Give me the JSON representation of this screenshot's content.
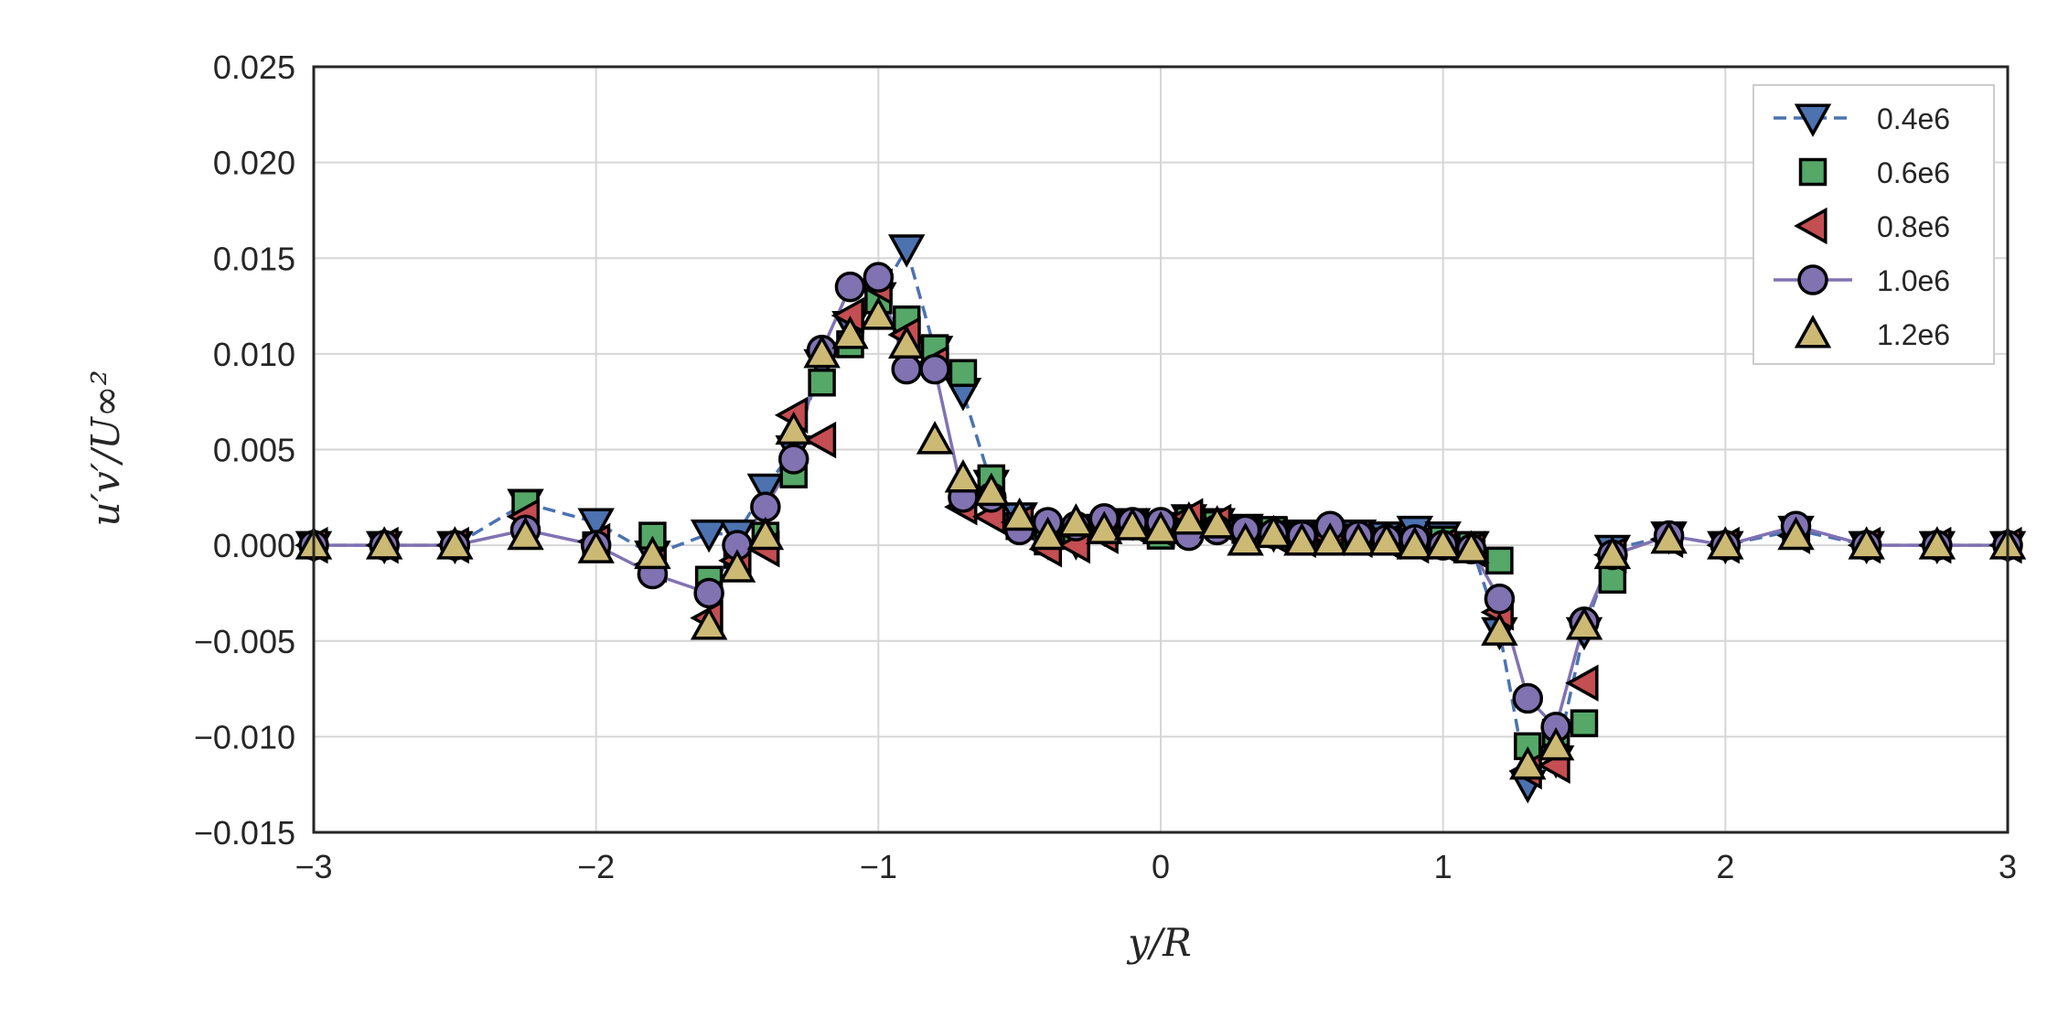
{
  "chart_data": {
    "type": "line",
    "xlabel": "y/R",
    "ylabel": "u′v′/U∞²",
    "xlim": [
      -3,
      3
    ],
    "ylim": [
      -0.015,
      0.025
    ],
    "xticks": [
      -3,
      -2,
      -1,
      0,
      1,
      2,
      3
    ],
    "yticks": [
      -0.015,
      -0.01,
      -0.005,
      0.0,
      0.005,
      0.01,
      0.015,
      0.02,
      0.025
    ],
    "xtick_labels": [
      "−3",
      "−2",
      "−1",
      "0",
      "1",
      "2",
      "3"
    ],
    "ytick_labels": [
      "−0.015",
      "−0.010",
      "−0.005",
      "0.000",
      "0.005",
      "0.010",
      "0.015",
      "0.020",
      "0.025"
    ],
    "grid": true,
    "legend_position": "top-right",
    "series": [
      {
        "name": "0.4e6",
        "color": "#4c72b0",
        "marker": "triangle-down",
        "line": "dashed",
        "x": [
          -3,
          -2.75,
          -2.5,
          -2.25,
          -2,
          -1.8,
          -1.6,
          -1.5,
          -1.4,
          -1.3,
          -1.2,
          -1.1,
          -1.0,
          -0.9,
          -0.8,
          -0.7,
          -0.6,
          -0.5,
          -0.4,
          -0.3,
          -0.2,
          -0.1,
          0,
          0.1,
          0.2,
          0.3,
          0.4,
          0.5,
          0.6,
          0.7,
          0.8,
          0.9,
          1.0,
          1.1,
          1.2,
          1.3,
          1.4,
          1.5,
          1.6,
          1.8,
          2.0,
          2.25,
          2.5,
          2.75,
          3.0
        ],
        "y": [
          0.0,
          0.0,
          0.0,
          0.0022,
          0.0012,
          -0.0005,
          0.0006,
          0.0006,
          0.003,
          0.005,
          0.0095,
          0.0115,
          0.013,
          0.0155,
          0.0102,
          0.008,
          0.0032,
          0.0015,
          0.0002,
          0.0002,
          0.0009,
          0.0012,
          0.001,
          0.0014,
          0.0012,
          0.0009,
          0.0006,
          0.0006,
          0.0006,
          0.0006,
          0.0005,
          0.0008,
          0.0005,
          0.0,
          -0.0045,
          -0.0125,
          -0.0112,
          -0.0045,
          -0.0002,
          0.0005,
          0.0,
          0.0008,
          0.0,
          0.0,
          0.0
        ]
      },
      {
        "name": "0.6e6",
        "color": "#55a868",
        "marker": "square",
        "line": "none",
        "x": [
          -3,
          -2.75,
          -2.5,
          -2.25,
          -2,
          -1.8,
          -1.6,
          -1.5,
          -1.4,
          -1.3,
          -1.2,
          -1.1,
          -1.0,
          -0.9,
          -0.8,
          -0.7,
          -0.6,
          -0.5,
          -0.4,
          -0.3,
          -0.2,
          -0.1,
          0,
          0.1,
          0.2,
          0.3,
          0.4,
          0.5,
          0.6,
          0.7,
          0.8,
          0.9,
          1.0,
          1.1,
          1.2,
          1.3,
          1.4,
          1.5,
          1.6,
          1.8,
          2.0,
          2.25,
          2.5,
          2.75,
          3.0
        ],
        "y": [
          0.0,
          0.0,
          0.0,
          0.0022,
          0.0,
          0.0005,
          -0.0018,
          -0.0005,
          0.0005,
          0.0037,
          0.0085,
          0.0105,
          0.0128,
          0.0118,
          0.0103,
          0.009,
          0.0035,
          0.001,
          0.0002,
          0.0005,
          0.0008,
          0.0012,
          0.0005,
          0.0013,
          0.0011,
          0.0008,
          0.0008,
          0.0005,
          0.0005,
          0.0004,
          0.0002,
          0.0002,
          0.0003,
          0.0,
          -0.0008,
          -0.0105,
          -0.0098,
          -0.0093,
          -0.0018,
          0.0005,
          0.0,
          0.0008,
          0.0,
          0.0,
          0.0
        ]
      },
      {
        "name": "0.8e6",
        "color": "#c44e52",
        "marker": "triangle-left",
        "line": "none",
        "x": [
          -3,
          -2.75,
          -2.5,
          -2.25,
          -2,
          -1.8,
          -1.6,
          -1.5,
          -1.4,
          -1.3,
          -1.2,
          -1.1,
          -1.0,
          -0.9,
          -0.8,
          -0.7,
          -0.6,
          -0.5,
          -0.4,
          -0.3,
          -0.2,
          -0.1,
          0,
          0.1,
          0.2,
          0.3,
          0.4,
          0.5,
          0.6,
          0.7,
          0.8,
          0.9,
          1.0,
          1.1,
          1.2,
          1.3,
          1.4,
          1.5,
          1.6,
          1.8,
          2.0,
          2.25,
          2.5,
          2.75,
          3.0
        ],
        "y": [
          0.0,
          0.0,
          0.0,
          0.0015,
          0.0002,
          -0.001,
          -0.0038,
          -0.0008,
          -0.0002,
          0.0068,
          0.0055,
          0.012,
          0.0135,
          0.011,
          0.0095,
          0.002,
          0.0015,
          0.0012,
          -0.0002,
          0.0,
          0.0005,
          0.001,
          0.0008,
          0.0015,
          0.0012,
          0.0006,
          0.0005,
          0.0003,
          0.0004,
          0.0003,
          0.0002,
          0.0,
          0.0,
          -0.0002,
          -0.0035,
          -0.0118,
          -0.0115,
          -0.0072,
          -0.0005,
          0.0003,
          0.0,
          0.0005,
          0.0,
          0.0,
          0.0
        ]
      },
      {
        "name": "1.0e6",
        "color": "#8172b2",
        "marker": "circle",
        "line": "solid",
        "x": [
          -3,
          -2.75,
          -2.5,
          -2.25,
          -2,
          -1.8,
          -1.6,
          -1.5,
          -1.4,
          -1.3,
          -1.2,
          -1.1,
          -1.0,
          -0.9,
          -0.8,
          -0.7,
          -0.6,
          -0.5,
          -0.4,
          -0.3,
          -0.2,
          -0.1,
          0,
          0.1,
          0.2,
          0.3,
          0.4,
          0.5,
          0.6,
          0.7,
          0.8,
          0.9,
          1.0,
          1.1,
          1.2,
          1.3,
          1.4,
          1.5,
          1.6,
          1.8,
          2.0,
          2.25,
          2.5,
          2.75,
          3.0
        ],
        "y": [
          0.0,
          0.0,
          0.0,
          0.0008,
          0.0,
          -0.0015,
          -0.0025,
          0.0,
          0.002,
          0.0045,
          0.0102,
          0.0135,
          0.014,
          0.0092,
          0.0092,
          0.0025,
          0.0025,
          0.0008,
          0.0012,
          0.001,
          0.0014,
          0.0012,
          0.0012,
          0.0005,
          0.0008,
          0.0008,
          0.0006,
          0.0005,
          0.001,
          0.0005,
          0.0003,
          0.0003,
          0.0,
          -0.0002,
          -0.0028,
          -0.008,
          -0.0095,
          -0.004,
          -0.0005,
          0.0005,
          0.0,
          0.001,
          0.0,
          0.0,
          0.0
        ]
      },
      {
        "name": "1.2e6",
        "color": "#ccb974",
        "marker": "triangle-up",
        "line": "none",
        "x": [
          -3,
          -2.75,
          -2.5,
          -2.25,
          -2,
          -1.8,
          -1.6,
          -1.5,
          -1.4,
          -1.3,
          -1.2,
          -1.1,
          -1.0,
          -0.9,
          -0.8,
          -0.7,
          -0.6,
          -0.5,
          -0.4,
          -0.3,
          -0.2,
          -0.1,
          0,
          0.1,
          0.2,
          0.3,
          0.4,
          0.5,
          0.6,
          0.7,
          0.8,
          0.9,
          1.0,
          1.1,
          1.2,
          1.3,
          1.4,
          1.5,
          1.6,
          1.8,
          2.0,
          2.25,
          2.5,
          2.75,
          3.0
        ],
        "y": [
          0.0,
          0.0,
          0.0,
          0.0005,
          -0.0002,
          -0.0005,
          -0.0042,
          -0.0012,
          0.0005,
          0.006,
          0.01,
          0.011,
          0.012,
          0.0105,
          0.0055,
          0.0035,
          0.0028,
          0.0015,
          0.0005,
          0.0012,
          0.0008,
          0.001,
          0.0008,
          0.0013,
          0.0011,
          0.0002,
          0.0006,
          0.0002,
          0.0002,
          0.0002,
          0.0002,
          0.0,
          0.0,
          -0.0002,
          -0.0045,
          -0.0115,
          -0.0105,
          -0.0042,
          -0.0005,
          0.0003,
          0.0,
          0.0005,
          0.0,
          0.0,
          0.0
        ]
      }
    ]
  }
}
